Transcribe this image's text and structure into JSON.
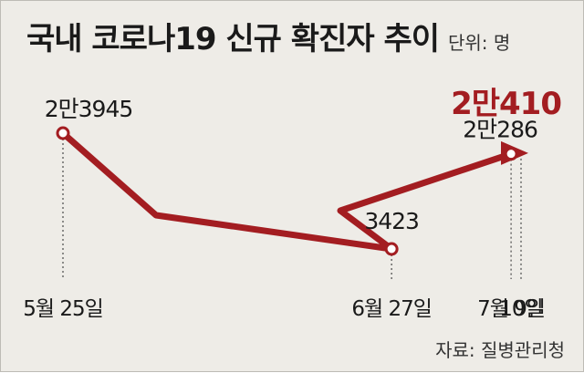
{
  "title": "국내 코로나19 신규 확진자 추이",
  "unit_label": "단위: 명",
  "source": "자료: 질병관리청",
  "colors": {
    "line": "#a31d21",
    "marker_fill": "#ffffff",
    "dotted": "#555555",
    "text": "#1a1a1a",
    "highlight_text": "#a31d21",
    "background": "#eeece7"
  },
  "chart_data": {
    "type": "line",
    "title": "국내 코로나19 신규 확진자 추이",
    "unit": "명",
    "x": [
      "5월 25일",
      "6월 27일",
      "7월 9일",
      "10일"
    ],
    "series": [
      {
        "values": [
          23945,
          3423,
          20286,
          20410
        ],
        "labels": [
          "2만3945",
          "3423",
          "2만286",
          "2만410"
        ],
        "marked": [
          true,
          true,
          true,
          false
        ],
        "highlight_last": true,
        "end_arrow": true
      }
    ],
    "grid": false,
    "legend": "none"
  }
}
